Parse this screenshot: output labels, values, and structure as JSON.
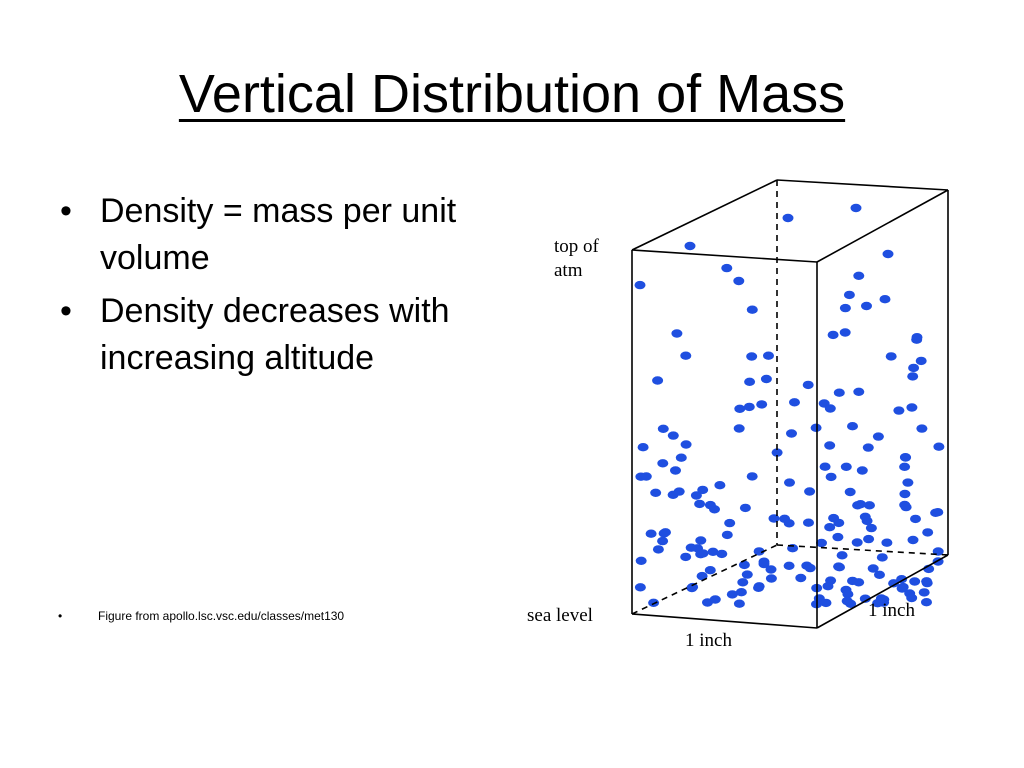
{
  "slide": {
    "title": "Vertical Distribution of Mass",
    "bullets": [
      {
        "marker": "•",
        "text": "Density = mass per unit volume"
      },
      {
        "marker": "•",
        "text": "Density decreases with increasing altitude"
      }
    ],
    "source": {
      "marker": "•",
      "text": "Figure from apollo.lsc.vsc.edu/classes/met130"
    }
  },
  "figure": {
    "label_top_line1": "top of",
    "label_top_line2": "atm",
    "label_sea": "sea level",
    "label_width": "1 inch",
    "label_depth": "1 inch",
    "particle_color": "#1f4fe0",
    "line_color": "#000000"
  }
}
